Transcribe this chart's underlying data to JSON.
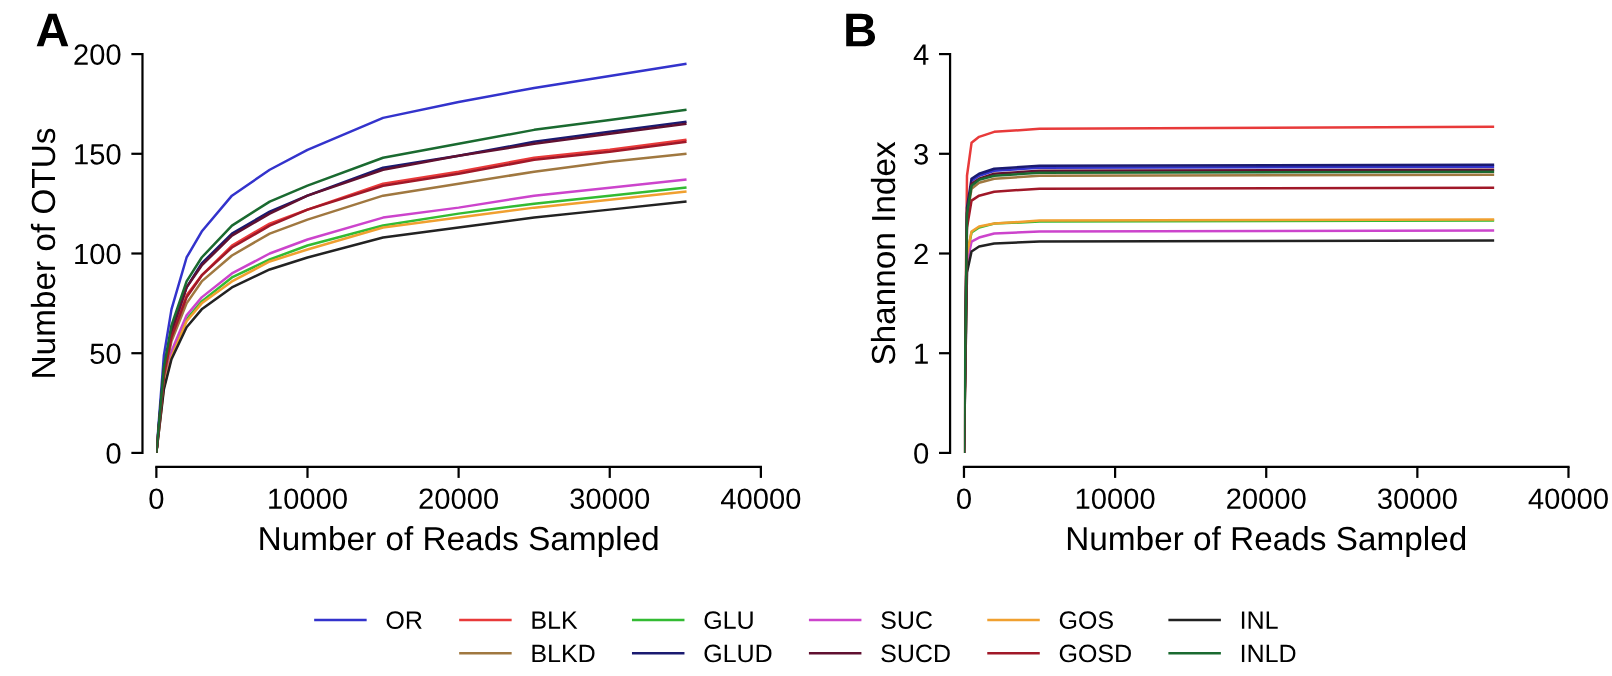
{
  "chart_data": [
    {
      "type": "line",
      "title": "A",
      "xlabel": "Number of Reads Sampled",
      "ylabel": "Number of OTUs",
      "x": [
        0,
        500,
        1000,
        2000,
        3000,
        5000,
        7500,
        10000,
        15000,
        20000,
        25000,
        30000,
        35000
      ],
      "xlim": [
        0,
        40000
      ],
      "xticks": [
        0,
        10000,
        20000,
        30000,
        40000
      ],
      "ylim": [
        0,
        200
      ],
      "yticks": [
        0,
        50,
        100,
        150,
        200
      ],
      "grid": false,
      "legend": "bottom",
      "marker": "none",
      "line_style": "solid",
      "series": [
        {
          "name": "OR",
          "color": "#3333cc",
          "values": [
            0,
            49,
            72,
            98,
            111,
            129,
            142,
            152,
            168,
            176,
            183,
            189,
            195
          ]
        },
        {
          "name": "BLK",
          "color": "#e83a3a",
          "values": [
            0,
            39,
            58,
            79,
            89,
            104,
            115,
            122,
            135,
            141,
            148,
            152,
            157
          ]
        },
        {
          "name": "GLU",
          "color": "#33bb33",
          "values": [
            null,
            null,
            49,
            67,
            76,
            88,
            97,
            104,
            114,
            120,
            125,
            129,
            133
          ]
        },
        {
          "name": "SUC",
          "color": "#cc44cc",
          "values": [
            0,
            34,
            51,
            69,
            78,
            90,
            100,
            107,
            118,
            123,
            129,
            133,
            137
          ]
        },
        {
          "name": "GOS",
          "color": "#f0a030",
          "values": [
            0,
            33,
            48,
            66,
            75,
            86,
            96,
            102,
            113,
            118,
            123,
            127,
            131
          ]
        },
        {
          "name": "INL",
          "color": "#222222",
          "values": [
            0,
            32,
            47,
            63,
            72,
            83,
            92,
            98,
            108,
            113,
            118,
            122,
            126
          ]
        },
        {
          "name": "BLKD",
          "color": "#a07840",
          "values": [
            0,
            38,
            56,
            75,
            86,
            99,
            110,
            117,
            129,
            135,
            141,
            146,
            150
          ]
        },
        {
          "name": "GLUD",
          "color": "#1a1a70",
          "values": [
            0,
            42,
            61,
            83,
            95,
            110,
            121,
            129,
            143,
            149,
            156,
            161,
            166
          ]
        },
        {
          "name": "SUCD",
          "color": "#601030",
          "values": [
            0,
            41,
            61,
            83,
            94,
            109,
            120,
            129,
            142,
            149,
            155,
            160,
            165
          ]
        },
        {
          "name": "GOSD",
          "color": "#a01828",
          "values": [
            0,
            39,
            58,
            78,
            89,
            103,
            114,
            122,
            134,
            140,
            147,
            151,
            156
          ]
        },
        {
          "name": "INLD",
          "color": "#1a6a30",
          "values": [
            0,
            43,
            64,
            86,
            98,
            114,
            126,
            134,
            148,
            155,
            162,
            167,
            172
          ]
        }
      ]
    },
    {
      "type": "line",
      "title": "B",
      "xlabel": "Number of Reads Sampled",
      "ylabel": "Shannon Index",
      "x": [
        0,
        200,
        500,
        1000,
        2000,
        5000,
        35000
      ],
      "xlim": [
        0,
        40000
      ],
      "xticks": [
        0,
        10000,
        20000,
        30000,
        40000
      ],
      "ylim": [
        0,
        4
      ],
      "yticks": [
        0,
        1,
        2,
        3,
        4
      ],
      "grid": false,
      "marker": "none",
      "line_style": "solid",
      "series": [
        {
          "color": "#3333cc",
          "values": [
            null,
            null,
            2.73,
            2.78,
            2.83,
            2.86,
            2.87
          ]
        },
        {
          "color": "#e83a3a",
          "values": [
            0,
            2.78,
            3.11,
            3.17,
            3.22,
            3.25,
            3.27
          ]
        },
        {
          "color": "#33bb33",
          "values": [
            0,
            1.98,
            2.21,
            2.26,
            2.3,
            2.32,
            2.33
          ]
        },
        {
          "color": "#cc44cc",
          "values": [
            0,
            1.9,
            2.12,
            2.16,
            2.2,
            2.22,
            2.23
          ]
        },
        {
          "color": "#f0a030",
          "values": [
            0,
            1.99,
            2.22,
            2.27,
            2.3,
            2.33,
            2.34
          ]
        },
        {
          "color": "#222222",
          "values": [
            0,
            1.81,
            2.02,
            2.07,
            2.1,
            2.12,
            2.13
          ]
        },
        {
          "color": "#a07840",
          "values": [
            0,
            2.37,
            2.65,
            2.71,
            2.75,
            2.78,
            2.79
          ]
        },
        {
          "color": "#1a1a70",
          "values": [
            0,
            2.46,
            2.75,
            2.8,
            2.85,
            2.88,
            2.89
          ]
        },
        {
          "color": "#601030",
          "values": [
            0,
            2.41,
            2.7,
            2.75,
            2.8,
            2.83,
            2.84
          ]
        },
        {
          "color": "#a01828",
          "values": [
            0,
            2.26,
            2.53,
            2.58,
            2.62,
            2.65,
            2.66
          ]
        },
        {
          "color": "#1a6a30",
          "values": [
            0,
            2.4,
            2.68,
            2.74,
            2.78,
            2.81,
            2.82
          ]
        }
      ]
    }
  ]
}
